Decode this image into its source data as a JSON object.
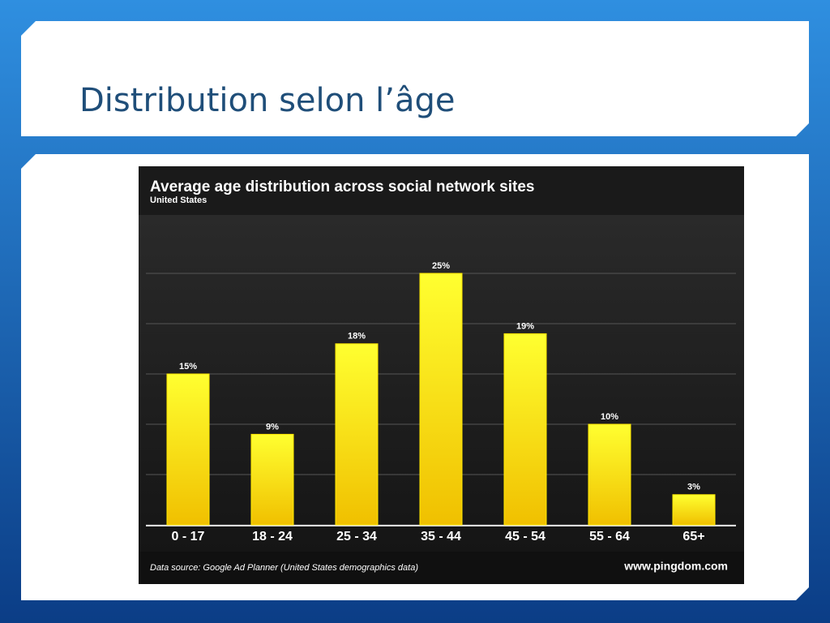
{
  "slide": {
    "title": "Distribution selon l’âge"
  },
  "chart_data": {
    "type": "bar",
    "title": "Average age distribution across social network sites",
    "subtitle": "United States",
    "categories": [
      "0 - 17",
      "18 - 24",
      "25 - 34",
      "35 - 44",
      "45 - 54",
      "55 - 64",
      "65+"
    ],
    "values": [
      15,
      9,
      18,
      25,
      19,
      10,
      3
    ],
    "value_labels": [
      "15%",
      "9%",
      "18%",
      "25%",
      "19%",
      "10%",
      "3%"
    ],
    "color": "#ffe800",
    "ylim": [
      0,
      30
    ],
    "yticks": [
      0,
      5,
      10,
      15,
      20,
      25
    ],
    "show_ytick_labels": false,
    "grid": true,
    "source": "Data source: Google Ad Planner (United States demographics data)",
    "credit": "www.pingdom.com"
  }
}
